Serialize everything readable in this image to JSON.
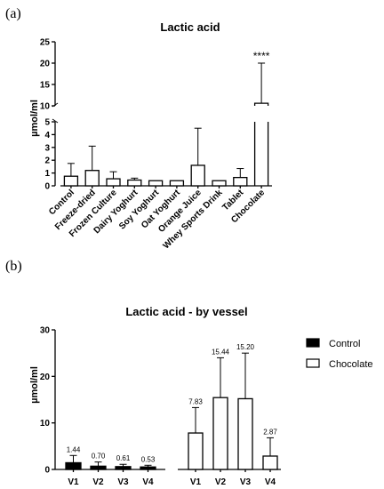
{
  "chart_data": [
    {
      "panel_label": "(a)",
      "type": "bar",
      "title": "Lactic acid",
      "ylabel": "µmol/ml",
      "xlabel": "",
      "categories": [
        "Control",
        "Freeze-dried",
        "Frozen Culture",
        "Dairy Yoghurt",
        "Soy Yoghurt",
        "Oat Yoghurt",
        "Orange Juice",
        "Whey Sports Drink",
        "Tablet",
        "Chocolate"
      ],
      "values": [
        0.75,
        1.2,
        0.55,
        0.45,
        0.4,
        0.4,
        1.6,
        0.4,
        0.65,
        10.6
      ],
      "error_upper": [
        1.75,
        3.1,
        1.1,
        0.6,
        0.4,
        0.4,
        4.5,
        0.4,
        1.35,
        20.0
      ],
      "y_axis_broken": true,
      "ylim_lower": [
        0,
        5
      ],
      "ylim_upper": [
        10,
        25
      ],
      "yticks_lower": [
        "0",
        "1",
        "2",
        "3",
        "4",
        "5"
      ],
      "yticks_upper": [
        "10",
        "15",
        "20",
        "25"
      ],
      "annotations": [
        {
          "category": "Chocolate",
          "text": "****"
        }
      ],
      "grid": false
    },
    {
      "panel_label": "(b)",
      "type": "bar",
      "title": "Lactic acid - by vessel",
      "ylabel": "µmol/ml",
      "xlabel": "",
      "ylim": [
        0,
        30
      ],
      "yticks": [
        "0",
        "10",
        "20",
        "30"
      ],
      "legend_position": "right",
      "grid": false,
      "series": [
        {
          "name": "Control",
          "color": "#000000",
          "categories": [
            "V1",
            "V2",
            "V3",
            "V4"
          ],
          "values": [
            1.44,
            0.7,
            0.61,
            0.53
          ],
          "labels": [
            "1.44",
            "0.70",
            "0.61",
            "0.53"
          ],
          "error_upper": [
            3.0,
            1.6,
            1.1,
            0.9
          ]
        },
        {
          "name": "Chocolate",
          "color": "#ffffff",
          "categories": [
            "V1",
            "V2",
            "V3",
            "V4"
          ],
          "values": [
            7.83,
            15.44,
            15.2,
            2.87
          ],
          "labels": [
            "7.83",
            "15.44",
            "15.20",
            "2.87"
          ],
          "error_upper": [
            13.3,
            24.0,
            25.0,
            6.8
          ]
        }
      ]
    }
  ]
}
